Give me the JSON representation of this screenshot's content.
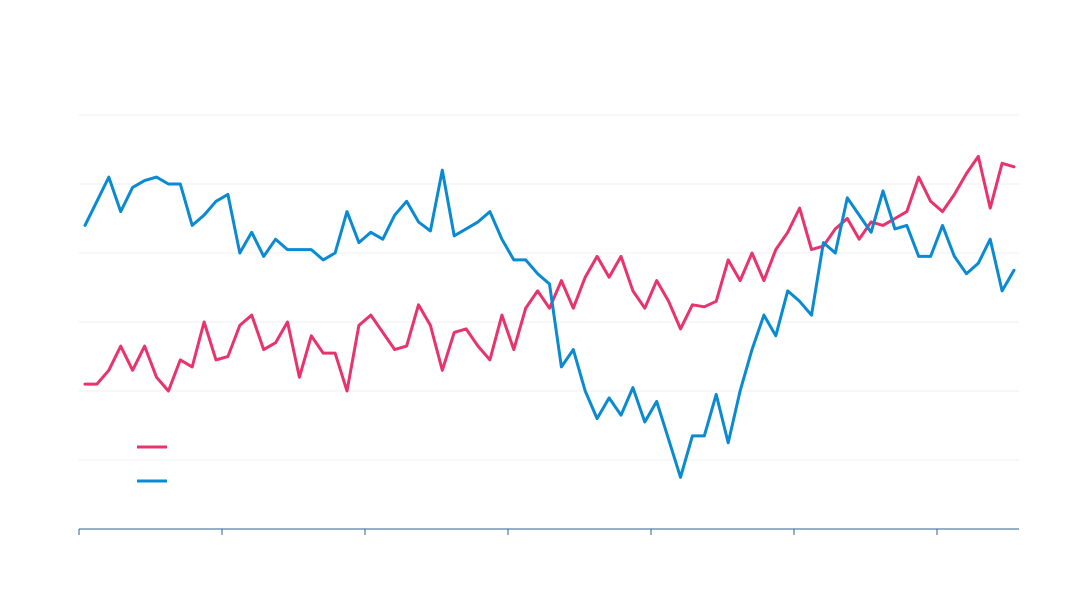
{
  "chart_data": {
    "type": "line",
    "title": "",
    "xlabel": "",
    "ylabel": "",
    "grid": true,
    "legend_placement": "bottom-left",
    "x_count": 79,
    "ylim": [
      0,
      6
    ],
    "y_grid_values": [
      1,
      2,
      3,
      4,
      5,
      6
    ],
    "x_tick_indices": [
      0,
      12,
      24,
      36,
      48,
      60,
      72
    ],
    "x_tick_labels": [
      "",
      "",
      "",
      "",
      "",
      "",
      ""
    ],
    "series": [
      {
        "color": "#e8336d",
        "values": [
          2.1,
          2.1,
          2.3,
          2.65,
          2.3,
          2.65,
          2.2,
          2.0,
          2.45,
          2.35,
          3.0,
          2.45,
          2.5,
          2.95,
          3.1,
          2.6,
          2.7,
          3.0,
          2.2,
          2.8,
          2.55,
          2.55,
          2.0,
          2.95,
          3.1,
          2.85,
          2.6,
          2.65,
          3.25,
          2.95,
          2.3,
          2.85,
          2.9,
          2.65,
          2.45,
          3.1,
          2.6,
          3.2,
          3.45,
          3.2,
          3.6,
          3.2,
          3.65,
          3.95,
          3.65,
          3.95,
          3.45,
          3.2,
          3.6,
          3.3,
          2.9,
          3.25,
          3.22,
          3.3,
          3.9,
          3.6,
          4.0,
          3.6,
          4.05,
          4.3,
          4.65,
          4.05,
          4.1,
          4.35,
          4.5,
          4.2,
          4.45,
          4.4,
          4.5,
          4.6,
          5.1,
          4.75,
          4.6,
          4.85,
          5.15,
          5.4,
          4.65,
          5.3,
          5.25
        ]
      },
      {
        "color": "#0a8ad2",
        "values": [
          4.4,
          4.75,
          5.1,
          4.6,
          4.95,
          5.05,
          5.1,
          5.0,
          5.0,
          4.4,
          4.55,
          4.75,
          4.85,
          4.0,
          4.3,
          3.95,
          4.2,
          4.05,
          4.05,
          4.05,
          3.9,
          4.0,
          4.6,
          4.15,
          4.3,
          4.2,
          4.55,
          4.75,
          4.45,
          4.32,
          5.2,
          4.25,
          4.35,
          4.45,
          4.6,
          4.2,
          3.9,
          3.9,
          3.7,
          3.55,
          2.35,
          2.6,
          2.0,
          1.6,
          1.9,
          1.65,
          2.05,
          1.55,
          1.85,
          1.3,
          0.75,
          1.35,
          1.35,
          1.95,
          1.25,
          2.0,
          2.6,
          3.1,
          2.8,
          3.45,
          3.3,
          3.1,
          4.15,
          4.0,
          4.8,
          4.55,
          4.3,
          4.9,
          4.35,
          4.4,
          3.95,
          3.95,
          4.4,
          3.95,
          3.7,
          3.85,
          4.2,
          3.45,
          3.75
        ]
      }
    ]
  }
}
